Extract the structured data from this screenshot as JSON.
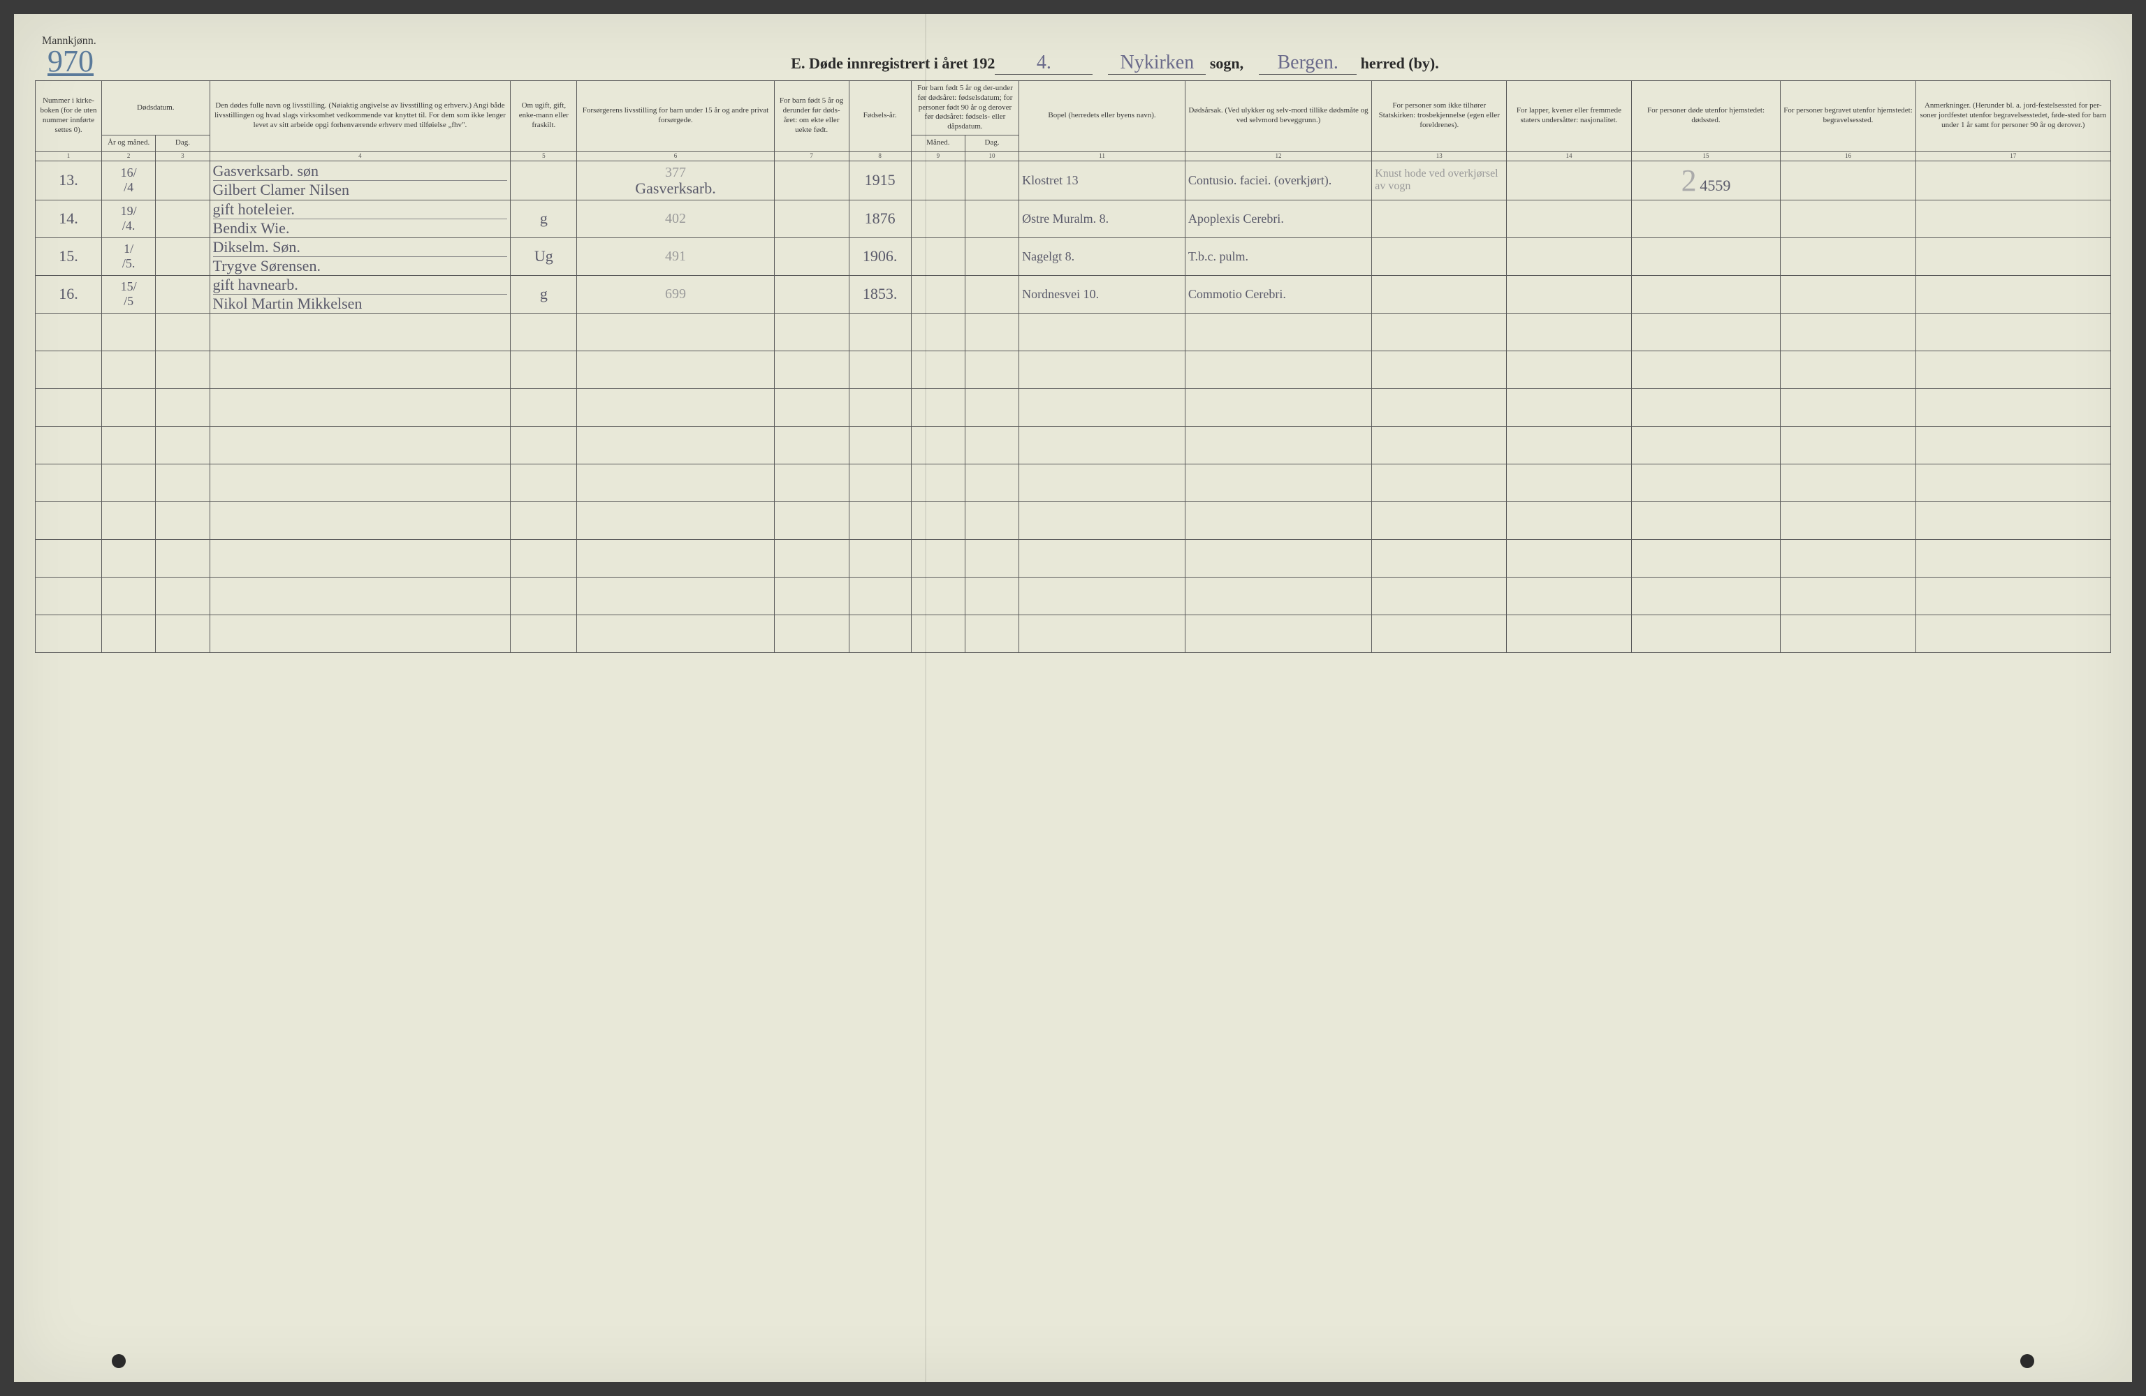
{
  "header": {
    "gender": "Mannkjønn.",
    "page_number_hand": "970",
    "title_prefix": "E.  Døde innregistrert i året 192",
    "year_suffix_hand": "4.",
    "parish_hand": "Nykirken",
    "label_sogn": "sogn,",
    "district_hand": "Bergen.",
    "label_herred": "herred (by)."
  },
  "columns": {
    "c1": "Nummer i kirke-boken (for de uten nummer innførte settes 0).",
    "c2_group": "Dødsdatum.",
    "c2": "År og måned.",
    "c3": "Dag.",
    "c4": "Den dødes fulle navn og livsstilling.\n(Nøiaktig angivelse av livsstilling og erhverv.)\nAngi både livsstillingen og hvad slags virksomhet vedkommende var knyttet til.\nFor dem som ikke lenger levet av sitt arbeide opgi forhenværende erhverv med tilføielse „fhv\".",
    "c5": "Om ugift, gift, enke-mann eller fraskilt.",
    "c6": "Forsørgerens livsstilling\nfor barn under 15 år og andre privat forsørgede.",
    "c7": "For barn født 5 år og derunder før døds-året: om ekte eller uekte født.",
    "c8": "Fødsels-år.",
    "c9_group": "For barn født 5 år og der-under før dødsåret: fødselsdatum; for personer født 90 år og derover før dødsåret: fødsels- eller dåpsdatum.",
    "c9": "Måned.",
    "c10": "Dag.",
    "c11": "Bopel\n(herredets eller byens navn).",
    "c12": "Dødsårsak.\n(Ved ulykker og selv-mord tillike dødsmåte og ved selvmord beveggrunn.)",
    "c13": "For personer som ikke tilhører Statskirken:\ntrosbekjennelse (egen eller foreldrenes).",
    "c14": "For lapper, kvener eller fremmede staters undersåtter:\nnasjonalitet.",
    "c15": "For personer døde utenfor hjemstedet:\ndødssted.",
    "c16": "For personer begravet utenfor hjemstedet:\nbegravelsessted.",
    "c17": "Anmerkninger.\n(Herunder bl. a. jord-festelsessted for per-soner jordfestet utenfor begravelsesstedet, føde-sted for barn under 1 år samt for personer 90 år og derover.)"
  },
  "colnums": [
    "1",
    "2",
    "3",
    "4",
    "5",
    "6",
    "7",
    "8",
    "9",
    "10",
    "11",
    "12",
    "13",
    "14",
    "15",
    "16",
    "17"
  ],
  "rows": [
    {
      "num": "13.",
      "date_ym": "16/\n/4",
      "date_d": "",
      "name_l1": "Gasverksarb. søn",
      "name_l2": "Gilbert Clamer Nilsen",
      "marital": "",
      "guardian": "Gasverksarb.",
      "guardian_pencil": "377",
      "legit": "",
      "birth_year": "1915",
      "bm": "",
      "bd": "",
      "residence": "Klostret 13",
      "cause": "Contusio. faciei. (overkjørt).",
      "faith_pencil": "Knust hode ved overkjørsel av vogn",
      "nation": "",
      "death_place_pencil": "2",
      "death_place_hand": "4559",
      "burial": "",
      "notes": ""
    },
    {
      "num": "14.",
      "date_ym": "19/\n/4.",
      "date_d": "",
      "name_l1": "gift hoteleier.",
      "name_l2": "Bendix Wie.",
      "marital": "g",
      "guardian": "",
      "guardian_pencil": "402",
      "legit": "",
      "birth_year": "1876",
      "bm": "",
      "bd": "",
      "residence": "Østre Muralm. 8.",
      "cause": "Apoplexis Cerebri.",
      "faith_pencil": "",
      "nation": "",
      "death_place_pencil": "",
      "death_place_hand": "",
      "burial": "",
      "notes": ""
    },
    {
      "num": "15.",
      "date_ym": "1/\n/5.",
      "date_d": "",
      "name_l1": "Dikselm. Søn.",
      "name_l2": "Trygve Sørensen.",
      "marital": "Ug",
      "guardian": "",
      "guardian_pencil": "491",
      "legit": "",
      "birth_year": "1906.",
      "bm": "",
      "bd": "",
      "residence": "Nagelgt 8.",
      "cause": "T.b.c. pulm.",
      "faith_pencil": "",
      "nation": "",
      "death_place_pencil": "",
      "death_place_hand": "",
      "burial": "",
      "notes": ""
    },
    {
      "num": "16.",
      "date_ym": "15/\n/5",
      "date_d": "",
      "name_l1": "gift havnearb.",
      "name_l2": "Nikol Martin Mikkelsen",
      "marital": "g",
      "guardian": "",
      "guardian_pencil": "699",
      "legit": "",
      "birth_year": "1853.",
      "bm": "",
      "bd": "",
      "residence": "Nordnesvei 10.",
      "cause": "Commotio Cerebri.",
      "faith_pencil": "",
      "nation": "",
      "death_place_pencil": "",
      "death_place_hand": "",
      "burial": "",
      "notes": ""
    }
  ],
  "empty_rows": 9
}
